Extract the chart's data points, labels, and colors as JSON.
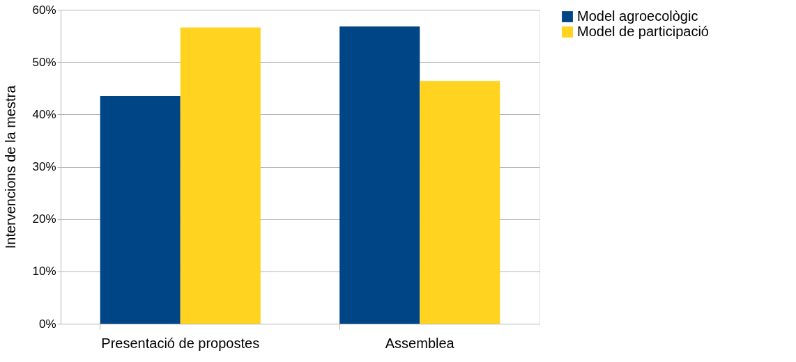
{
  "chart_data": {
    "type": "bar",
    "ylabel": "Intervencions de la mestra",
    "categories": [
      "Presentació de propostes",
      "Assemblea"
    ],
    "series": [
      {
        "name": "Model agroecològic",
        "color": "#004586",
        "values": [
          43.5,
          56.8
        ]
      },
      {
        "name": "Model de participació",
        "color": "#ffd320",
        "values": [
          56.6,
          46.4
        ]
      }
    ],
    "ylim": [
      0,
      60
    ],
    "yticks": [
      {
        "value": 0,
        "label": "0%"
      },
      {
        "value": 10,
        "label": "10%"
      },
      {
        "value": 20,
        "label": "20%"
      },
      {
        "value": 30,
        "label": "30%"
      },
      {
        "value": 40,
        "label": "40%"
      },
      {
        "value": 50,
        "label": "50%"
      },
      {
        "value": 60,
        "label": "60%"
      }
    ],
    "grid": "y",
    "legend": "right"
  }
}
